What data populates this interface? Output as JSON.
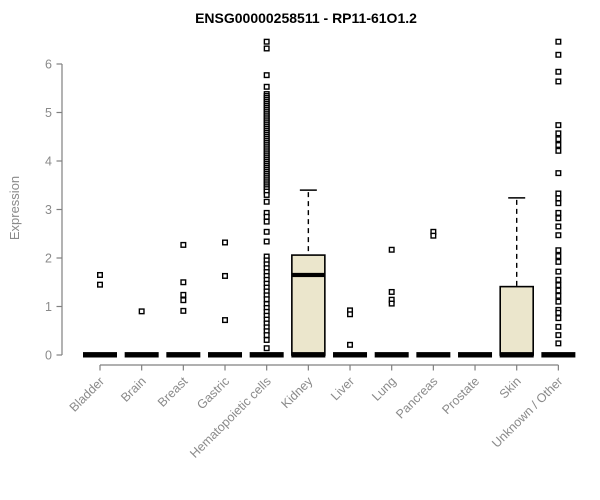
{
  "chart_data": {
    "type": "boxplot",
    "title": "ENSG00000258511 - RP11-61O1.2",
    "ylabel": "Expression",
    "xlabel": "",
    "ylim": [
      0,
      6.6
    ],
    "yticks": [
      0,
      1,
      2,
      3,
      4,
      5,
      6
    ],
    "grid": false,
    "legend": "none",
    "categories": [
      "Bladder",
      "Brain",
      "Breast",
      "Gastric",
      "Hematopoietic cells",
      "Kidney",
      "Liver",
      "Lung",
      "Pancreas",
      "Prostate",
      "Skin",
      "Unknown / Other"
    ],
    "colors": {
      "box_fill": "#ebe6cc",
      "box_border": "#000000",
      "median": "#000000",
      "axis": "#808080",
      "tick_label": "#8a8a8a",
      "title": "#000000",
      "point_fill": "#ffffff",
      "point_stroke": "#000000",
      "background": "#ffffff"
    },
    "series": [
      {
        "name": "Bladder",
        "q1": 0,
        "median": 0,
        "q3": 0,
        "whisker_low": 0,
        "whisker_high": 0,
        "outliers": [
          1.65,
          1.45
        ]
      },
      {
        "name": "Brain",
        "q1": 0,
        "median": 0,
        "q3": 0,
        "whisker_low": 0,
        "whisker_high": 0,
        "outliers": [
          0.9
        ]
      },
      {
        "name": "Breast",
        "q1": 0,
        "median": 0,
        "q3": 0,
        "whisker_low": 0,
        "whisker_high": 0,
        "outliers": [
          2.27,
          1.5,
          1.24,
          1.13,
          0.91
        ]
      },
      {
        "name": "Gastric",
        "q1": 0,
        "median": 0,
        "q3": 0,
        "whisker_low": 0,
        "whisker_high": 0,
        "outliers": [
          2.32,
          1.63,
          0.72
        ]
      },
      {
        "name": "Hematopoietic cells",
        "q1": 0,
        "median": 0,
        "q3": 0,
        "whisker_low": 0,
        "whisker_high": 0,
        "outliers": [
          6.46,
          6.32,
          5.77,
          5.53,
          5.38,
          5.34,
          5.3,
          5.26,
          5.22,
          5.18,
          5.14,
          5.1,
          5.06,
          5.02,
          4.98,
          4.94,
          4.9,
          4.86,
          4.82,
          4.78,
          4.74,
          4.7,
          4.66,
          4.62,
          4.58,
          4.54,
          4.5,
          4.46,
          4.42,
          4.38,
          4.34,
          4.3,
          4.26,
          4.22,
          4.18,
          4.14,
          4.1,
          4.06,
          4.02,
          3.98,
          3.94,
          3.9,
          3.86,
          3.82,
          3.78,
          3.74,
          3.7,
          3.66,
          3.62,
          3.58,
          3.54,
          3.5,
          3.46,
          3.42,
          3.37,
          3.3,
          3.16,
          2.93,
          2.85,
          2.75,
          2.54,
          2.34,
          2.03,
          1.95,
          1.87,
          1.79,
          1.71,
          1.63,
          1.55,
          1.47,
          1.39,
          1.31,
          1.23,
          1.15,
          1.05,
          0.97,
          0.89,
          0.81,
          0.73,
          0.65,
          0.57,
          0.49,
          0.41,
          0.31,
          0.14
        ]
      },
      {
        "name": "Kidney",
        "q1": 0,
        "median": 1.65,
        "q3": 2.06,
        "whisker_low": 0,
        "whisker_high": 3.4,
        "outliers": []
      },
      {
        "name": "Liver",
        "q1": 0,
        "median": 0,
        "q3": 0,
        "whisker_low": 0,
        "whisker_high": 0,
        "outliers": [
          0.92,
          0.84,
          0.21
        ]
      },
      {
        "name": "Lung",
        "q1": 0,
        "median": 0,
        "q3": 0,
        "whisker_low": 0,
        "whisker_high": 0,
        "outliers": [
          2.17,
          1.3,
          1.14,
          1.06
        ]
      },
      {
        "name": "Pancreas",
        "q1": 0,
        "median": 0,
        "q3": 0,
        "whisker_low": 0,
        "whisker_high": 0,
        "outliers": [
          2.54,
          2.46
        ]
      },
      {
        "name": "Prostate",
        "q1": 0,
        "median": 0,
        "q3": 0,
        "whisker_low": 0,
        "whisker_high": 0,
        "outliers": []
      },
      {
        "name": "Skin",
        "q1": 0,
        "median": 0,
        "q3": 1.41,
        "whisker_low": 0,
        "whisker_high": 3.24,
        "outliers": []
      },
      {
        "name": "Unknown / Other",
        "q1": 0,
        "median": 0,
        "q3": 0,
        "whisker_low": 0,
        "whisker_high": 0,
        "outliers": [
          6.46,
          6.19,
          5.84,
          5.64,
          4.74,
          4.57,
          4.45,
          4.33,
          4.21,
          3.75,
          3.33,
          3.23,
          3.13,
          2.93,
          2.82,
          2.65,
          2.47,
          2.16,
          2.04,
          1.92,
          1.72,
          1.55,
          1.44,
          1.33,
          1.22,
          1.1,
          0.93,
          0.87,
          0.76,
          0.58,
          0.41,
          0.24
        ]
      }
    ]
  }
}
